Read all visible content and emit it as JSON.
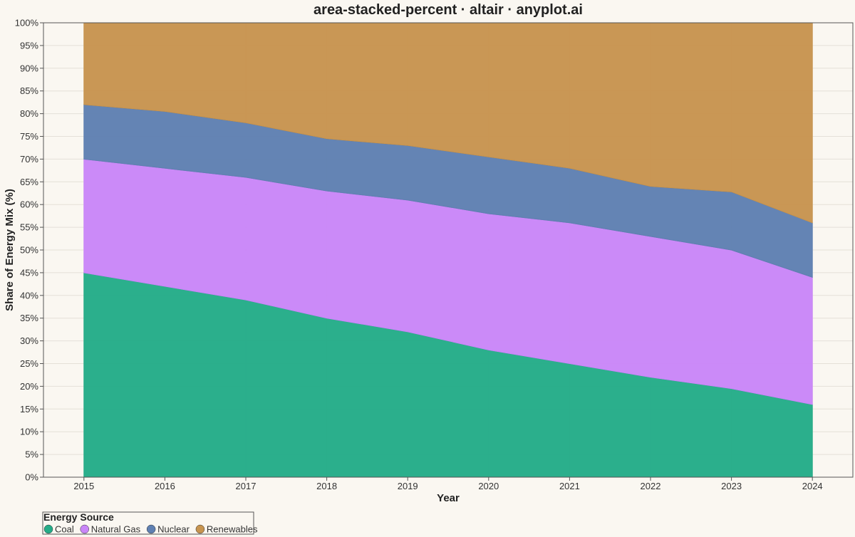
{
  "chart_data": {
    "type": "area",
    "stacking": "normalize",
    "title": "area-stacked-percent · altair · anyplot.ai",
    "xlabel": "Year",
    "ylabel": "Share of Energy Mix (%)",
    "x": [
      2015,
      2016,
      2017,
      2018,
      2019,
      2020,
      2021,
      2022,
      2023,
      2024
    ],
    "x_tick_labels": [
      "2015",
      "2016",
      "2017",
      "2018",
      "2019",
      "2020",
      "2021",
      "2022",
      "2023",
      "2024"
    ],
    "xlim": [
      2014.5,
      2024.5
    ],
    "ylim": [
      0,
      100
    ],
    "y_ticks": [
      0,
      5,
      10,
      15,
      20,
      25,
      30,
      35,
      40,
      45,
      50,
      55,
      60,
      65,
      70,
      75,
      80,
      85,
      90,
      95,
      100
    ],
    "y_tick_suffix": "%",
    "grid": true,
    "legend": {
      "title": "Energy Source",
      "placement": "bottom-left"
    },
    "series": [
      {
        "name": "Coal",
        "color": "#24AC88",
        "values": [
          45,
          42,
          39,
          35,
          32,
          28,
          25,
          22,
          19.5,
          16
        ]
      },
      {
        "name": "Natural Gas",
        "color": "#C986F8",
        "values": [
          25,
          26,
          27,
          28,
          29,
          30,
          31,
          31,
          30.5,
          28
        ]
      },
      {
        "name": "Nuclear",
        "color": "#5F80B2",
        "values": [
          12,
          12.5,
          12,
          11.5,
          12,
          12.5,
          12,
          11,
          12.8,
          12
        ]
      },
      {
        "name": "Renewables",
        "color": "#C7944F",
        "values": [
          18,
          19.5,
          22,
          25.5,
          27,
          29.5,
          32,
          36,
          37.2,
          44
        ]
      }
    ]
  }
}
